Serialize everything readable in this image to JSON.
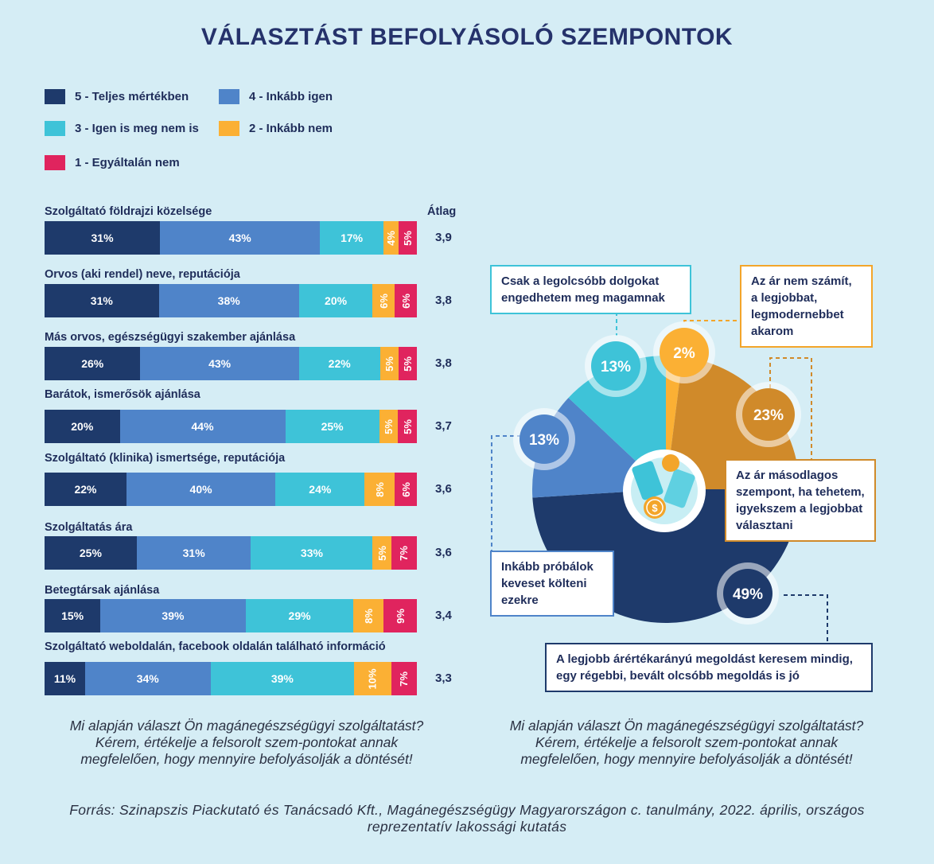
{
  "title": "VÁLASZTÁST BEFOLYÁSOLÓ SZEMPONTOK",
  "colors": {
    "c5": "#1e3a6b",
    "c4": "#4f84c9",
    "c3": "#3ec3d8",
    "c2": "#fbb034",
    "c1": "#e0245e"
  },
  "legend": [
    {
      "label": "5 - Teljes mértékben",
      "color": "#1e3a6b"
    },
    {
      "label": "4 - Inkább igen",
      "color": "#4f84c9"
    },
    {
      "label": "3 - Igen is meg nem is",
      "color": "#3ec3d8"
    },
    {
      "label": "2 - Inkább nem",
      "color": "#fbb034"
    },
    {
      "label": "1 - Egyáltalán nem",
      "color": "#e0245e"
    }
  ],
  "avg_header": "Átlag",
  "chart_data": [
    {
      "type": "bar",
      "orientation": "horizontal-stacked-100",
      "series_names": [
        "5 - Teljes mértékben",
        "4 - Inkább igen",
        "3 - Igen is meg nem is",
        "2 - Inkább nem",
        "1 - Egyáltalán nem"
      ],
      "rows": [
        {
          "label": "Szolgáltató földrajzi közelsége",
          "values": [
            31,
            43,
            17,
            4,
            5
          ],
          "avg": "3,9"
        },
        {
          "label": "Orvos (aki rendel) neve, reputációja",
          "values": [
            31,
            38,
            20,
            6,
            6
          ],
          "avg": "3,8"
        },
        {
          "label": "Más orvos, egészségügyi szakember ajánlása",
          "values": [
            26,
            43,
            22,
            5,
            5
          ],
          "avg": "3,8"
        },
        {
          "label": "Barátok, ismerősök ajánlása",
          "values": [
            20,
            44,
            25,
            5,
            5
          ],
          "avg": "3,7"
        },
        {
          "label": "Szolgáltató (klinika) ismertsége, reputációja",
          "values": [
            22,
            40,
            24,
            8,
            6
          ],
          "avg": "3,6"
        },
        {
          "label": "Szolgáltatás ára",
          "values": [
            25,
            31,
            33,
            5,
            7
          ],
          "avg": "3,6"
        },
        {
          "label": "Betegtársak ajánlása",
          "values": [
            15,
            39,
            29,
            8,
            9
          ],
          "avg": "3,4"
        },
        {
          "label": "Szolgáltató weboldalán, facebook oldalán található információ",
          "values": [
            11,
            34,
            39,
            10,
            7
          ],
          "avg": "3,3"
        }
      ]
    },
    {
      "type": "pie",
      "slices": [
        {
          "label": "Az ár nem számít, a legjobbat, legmodernebbet akarom",
          "value": 2,
          "color": "#fbb034"
        },
        {
          "label": "Az ár másodlagos szempont, ha tehetem, igyekszem a legjobbat választani",
          "value": 23,
          "color": "#d08a2a"
        },
        {
          "label": "A legjobb árértékarányú megoldást keresem mindig, egy régebbi, bevált olcsóbb megoldás is jó",
          "value": 49,
          "color": "#1e3a6b"
        },
        {
          "label": "Inkább próbálok keveset költeni ezekre",
          "value": 13,
          "color": "#4f84c9"
        },
        {
          "label": "Csak a legolcsóbb dolgokat engedhetem meg magamnak",
          "value": 13,
          "color": "#3ec3d8"
        }
      ]
    }
  ],
  "question_left": "Mi alapján választ Ön magánegészségügyi szolgáltatást? Kérem, értékelje a felsorolt szem-pontokat annak megfelelően, hogy mennyire befolyásolják a döntését!",
  "question_right": "Mi alapján választ Ön magánegészségügyi szolgáltatást? Kérem, értékelje a felsorolt szem-pontokat annak megfelelően, hogy mennyire befolyásolják a döntését!",
  "source": "Forrás: Szinapszis Piackutató és Tanácsadó Kft., Magánegészségügy Magyarországon c. tanulmány, 2022. április, országos reprezentatív lakossági kutatás"
}
